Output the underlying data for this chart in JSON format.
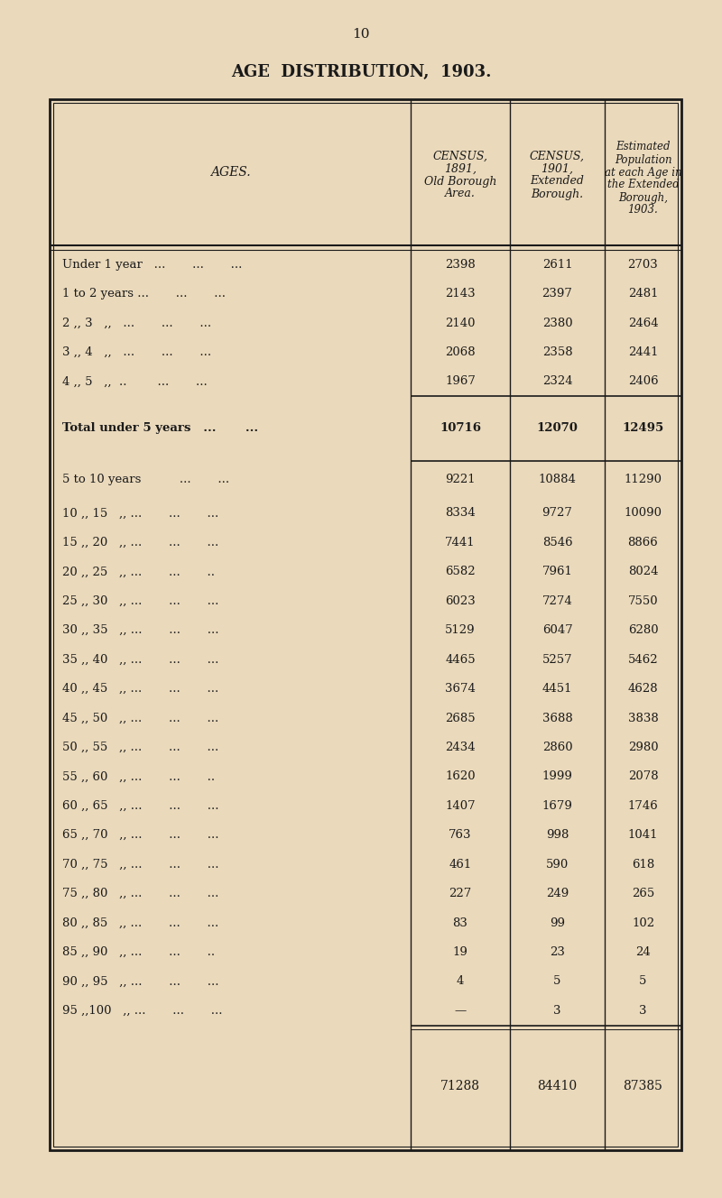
{
  "page_number": "10",
  "title": "AGE  DISTRIBUTION,  1903.",
  "background_color": "#EAD9BB",
  "text_color": "#1a1a1a",
  "line_color": "#1a1a1a",
  "col_headers_line1": [
    "",
    "CENSUS,",
    "CENSUS,",
    "Estimated"
  ],
  "col_headers_line2": [
    "AGES.",
    "1891,",
    "1901,",
    "Population"
  ],
  "col_headers_line3": [
    "",
    "Old Borough",
    "Extended",
    "at each Age in"
  ],
  "col_headers_line4": [
    "",
    "Area.",
    "Borough.",
    "the Extended"
  ],
  "col_headers_line5": [
    "",
    "",
    "",
    "Borough,"
  ],
  "col_headers_line6": [
    "",
    "",
    "",
    "1903."
  ],
  "rows": [
    {
      "label": "Under 1 year   ...       ...       ...",
      "c1": "2398",
      "c2": "2611",
      "c3": "2703",
      "bold": false,
      "is_total": false
    },
    {
      "label": "1 to 2 years ...       ...       ...",
      "c1": "2143",
      "c2": "2397",
      "c3": "2481",
      "bold": false,
      "is_total": false
    },
    {
      "label": "2 ,, 3   ,,   ...       ...       ...",
      "c1": "2140",
      "c2": "2380",
      "c3": "2464",
      "bold": false,
      "is_total": false
    },
    {
      "label": "3 ,, 4   ,,   ...       ...       ...",
      "c1": "2068",
      "c2": "2358",
      "c3": "2441",
      "bold": false,
      "is_total": false
    },
    {
      "label": "4 ,, 5   ,,  ..        ...       ...",
      "c1": "1967",
      "c2": "2324",
      "c3": "2406",
      "bold": false,
      "is_total": false
    },
    {
      "label": "Total under 5 years   ...       ...",
      "c1": "10716",
      "c2": "12070",
      "c3": "12495",
      "bold": true,
      "is_total": true
    },
    {
      "label": "5 to 10 years          ...       ...",
      "c1": "9221",
      "c2": "10884",
      "c3": "11290",
      "bold": false,
      "is_total": false
    },
    {
      "label": "10 ,, 15   ,, ...       ...       ...",
      "c1": "8334",
      "c2": "9727",
      "c3": "10090",
      "bold": false,
      "is_total": false
    },
    {
      "label": "15 ,, 20   ,, ...       ...       ...",
      "c1": "7441",
      "c2": "8546",
      "c3": "8866",
      "bold": false,
      "is_total": false
    },
    {
      "label": "20 ,, 25   ,, ...       ...       ..",
      "c1": "6582",
      "c2": "7961",
      "c3": "8024",
      "bold": false,
      "is_total": false
    },
    {
      "label": "25 ,, 30   ,, ...       ...       ...",
      "c1": "6023",
      "c2": "7274",
      "c3": "7550",
      "bold": false,
      "is_total": false
    },
    {
      "label": "30 ,, 35   ,, ...       ...       ...",
      "c1": "5129",
      "c2": "6047",
      "c3": "6280",
      "bold": false,
      "is_total": false
    },
    {
      "label": "35 ,, 40   ,, ...       ...       ...",
      "c1": "4465",
      "c2": "5257",
      "c3": "5462",
      "bold": false,
      "is_total": false
    },
    {
      "label": "40 ,, 45   ,, ...       ...       ...",
      "c1": "3674",
      "c2": "4451",
      "c3": "4628",
      "bold": false,
      "is_total": false
    },
    {
      "label": "45 ,, 50   ,, ...       ...       ...",
      "c1": "2685",
      "c2": "3688",
      "c3": "3838",
      "bold": false,
      "is_total": false
    },
    {
      "label": "50 ,, 55   ,, ...       ...       ...",
      "c1": "2434",
      "c2": "2860",
      "c3": "2980",
      "bold": false,
      "is_total": false
    },
    {
      "label": "55 ,, 60   ,, ...       ...       ..",
      "c1": "1620",
      "c2": "1999",
      "c3": "2078",
      "bold": false,
      "is_total": false
    },
    {
      "label": "60 ,, 65   ,, ...       ...       ...",
      "c1": "1407",
      "c2": "1679",
      "c3": "1746",
      "bold": false,
      "is_total": false
    },
    {
      "label": "65 ,, 70   ,, ...       ...       ...",
      "c1": "763",
      "c2": "998",
      "c3": "1041",
      "bold": false,
      "is_total": false
    },
    {
      "label": "70 ,, 75   ,, ...       ...       ...",
      "c1": "461",
      "c2": "590",
      "c3": "618",
      "bold": false,
      "is_total": false
    },
    {
      "label": "75 ,, 80   ,, ...       ...       ...",
      "c1": "227",
      "c2": "249",
      "c3": "265",
      "bold": false,
      "is_total": false
    },
    {
      "label": "80 ,, 85   ,, ...       ...       ...",
      "c1": "83",
      "c2": "99",
      "c3": "102",
      "bold": false,
      "is_total": false
    },
    {
      "label": "85 ,, 90   ,, ...       ...       ..",
      "c1": "19",
      "c2": "23",
      "c3": "24",
      "bold": false,
      "is_total": false
    },
    {
      "label": "90 ,, 95   ,, ...       ...       ...",
      "c1": "4",
      "c2": "5",
      "c3": "5",
      "bold": false,
      "is_total": false
    },
    {
      "label": "95 ,,100   ,, ...       ...       ...",
      "c1": "—",
      "c2": "3",
      "c3": "3",
      "bold": false,
      "is_total": false
    }
  ],
  "totals": {
    "c1": "71288",
    "c2": "84410",
    "c3": "87385"
  }
}
